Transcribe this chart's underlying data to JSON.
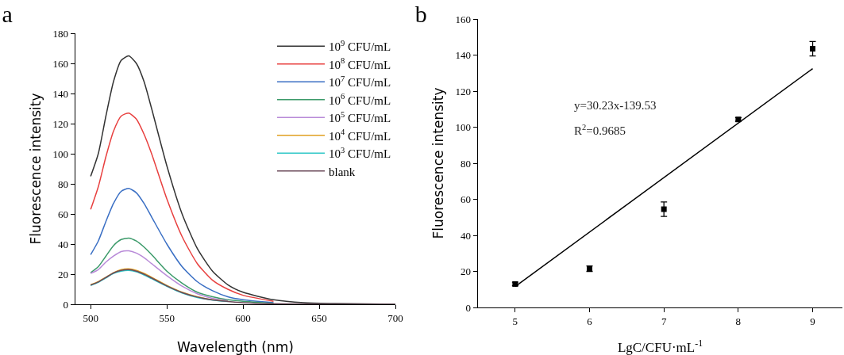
{
  "chart_data": [
    {
      "type": "line",
      "title": "a",
      "xlabel": "Wavelength (nm)",
      "ylabel": "Fluorescence intensity",
      "x": [
        500,
        505,
        510,
        515,
        520,
        525,
        530,
        535,
        540,
        550,
        560,
        570,
        580,
        590,
        600,
        620,
        640,
        660,
        680,
        700
      ],
      "xlim": [
        490,
        700
      ],
      "xticks": [
        500,
        550,
        600,
        650,
        700
      ],
      "ylim": [
        0,
        180
      ],
      "yticks": [
        0,
        20,
        40,
        60,
        80,
        100,
        120,
        140,
        160,
        180
      ],
      "grid": false,
      "legend": "top right",
      "series": [
        {
          "name": "10$^{9}$ CFU/mL",
          "color": "#333333",
          "values": [
            85,
            100,
            125,
            148,
            162,
            165,
            160,
            148,
            130,
            92,
            60,
            37,
            22,
            13,
            8,
            3,
            1,
            0.5,
            0.2,
            0
          ]
        },
        {
          "name": "10$^{8}$ CFU/mL",
          "color": "#e8403f",
          "values": [
            63,
            78,
            98,
            115,
            125,
            127,
            123,
            113,
            100,
            70,
            45,
            27,
            16,
            10,
            6,
            2,
            null,
            null,
            null,
            null
          ]
        },
        {
          "name": "10$^{7}$ CFU/mL",
          "color": "#3a6fc4",
          "values": [
            33,
            42,
            55,
            67,
            75,
            77,
            74,
            67,
            58,
            40,
            25,
            15,
            9,
            5,
            3,
            1,
            null,
            null,
            null,
            null
          ]
        },
        {
          "name": "10$^{6}$ CFU/mL",
          "color": "#3c9a6a",
          "values": [
            21,
            25,
            32,
            39,
            43,
            44,
            42,
            38,
            33,
            22,
            14,
            8,
            5,
            3,
            2,
            0.6,
            null,
            null,
            null,
            null
          ]
        },
        {
          "name": "10$^{5}$ CFU/mL",
          "color": "#b88ad8",
          "values": [
            20.5,
            23,
            28,
            32,
            35,
            35.5,
            34,
            31,
            27,
            19,
            12,
            7,
            4,
            2.5,
            null,
            null,
            null,
            null,
            null,
            null
          ]
        },
        {
          "name": "10$^{4}$ CFU/mL",
          "color": "#e0a020",
          "values": [
            13,
            15,
            18,
            21,
            23,
            23.5,
            22.5,
            20.5,
            18,
            12.5,
            8,
            5,
            3,
            2,
            null,
            null,
            null,
            null,
            null,
            null
          ]
        },
        {
          "name": "10$^{3}$ CFU/mL",
          "color": "#30c8c8",
          "values": [
            12.5,
            14.5,
            17.5,
            20.5,
            22,
            22.5,
            21.5,
            19.5,
            17,
            12,
            7.5,
            4.5,
            2.8,
            1.8,
            null,
            null,
            null,
            null,
            null,
            null
          ]
        },
        {
          "name": "blank",
          "color": "#6b4a5a",
          "values": [
            12.8,
            14.8,
            17.8,
            20.8,
            22.5,
            23,
            22,
            20,
            17.5,
            12.2,
            7.8,
            4.8,
            2.9,
            1.9,
            1.1,
            0.4,
            0.1,
            0,
            0,
            0
          ]
        }
      ]
    },
    {
      "type": "scatter",
      "title": "b",
      "xlabel": "LgC/CFU·mL$^{-1}$",
      "ylabel": "Fluorescence intensity",
      "xlim": [
        4.5,
        9.4
      ],
      "xticks": [
        5,
        6,
        7,
        8,
        9
      ],
      "ylim": [
        0,
        160
      ],
      "yticks": [
        0,
        20,
        40,
        60,
        80,
        100,
        120,
        140,
        160
      ],
      "grid": false,
      "marker": "square",
      "annotations": [
        "y=30.23x-139.53",
        "R$^{2}$=0.9685"
      ],
      "series": [
        {
          "color": "#000000",
          "x": [
            5,
            6,
            7,
            8,
            9
          ],
          "values": [
            13,
            21.5,
            54.5,
            104.3,
            143.5
          ],
          "errors": [
            1,
            1.5,
            4,
            1,
            4
          ]
        },
        {
          "type": "line",
          "marker": "none",
          "color": "#000000",
          "x": [
            5,
            9
          ],
          "values": [
            11.6,
            132.5
          ]
        }
      ]
    }
  ]
}
